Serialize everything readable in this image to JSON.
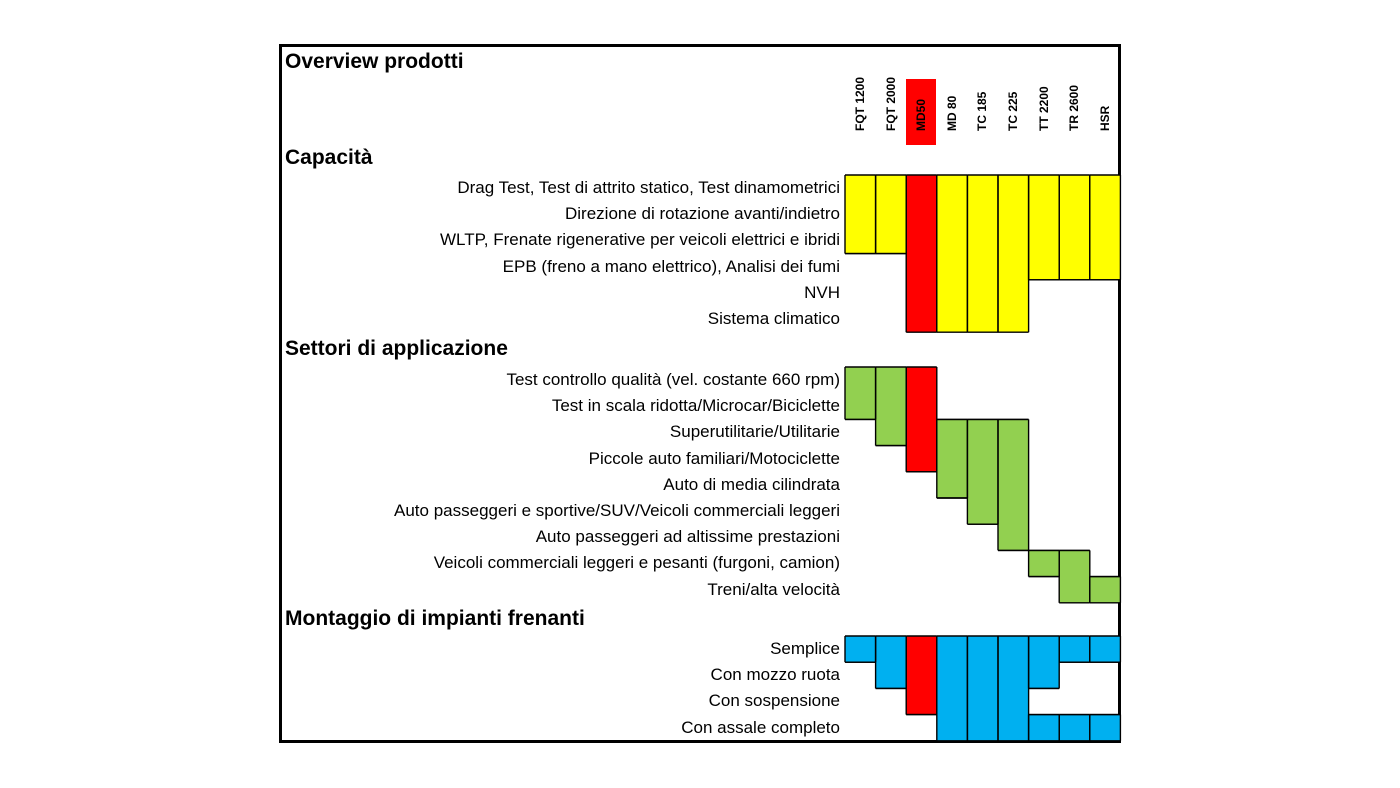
{
  "chart_data": {
    "type": "table",
    "title": "Overview prodotti",
    "columns": [
      "FQT 1200",
      "FQT 2000",
      "MD50",
      "MD 80",
      "TC 185",
      "TC 225",
      "TT 2200",
      "TR 2600",
      "HSR"
    ],
    "highlight_column": "MD50",
    "colors": {
      "capacita": "#ffff00",
      "settori": "#92d050",
      "montaggio": "#00b0f0",
      "highlight": "#ff0000"
    },
    "sections": [
      {
        "key": "capacita",
        "title": "Capacità",
        "rows": [
          {
            "label": "Drag Test, Test di attrito statico, Test dinamometrici",
            "cells": [
              1,
              1,
              1,
              1,
              1,
              1,
              1,
              1,
              1
            ]
          },
          {
            "label": "Direzione di rotazione avanti/indietro",
            "cells": [
              1,
              1,
              1,
              1,
              1,
              1,
              1,
              1,
              1
            ]
          },
          {
            "label": "WLTP, Frenate rigenerative per veicoli elettrici e ibridi",
            "cells": [
              1,
              1,
              1,
              1,
              1,
              1,
              1,
              1,
              1
            ]
          },
          {
            "label": "EPB (freno a mano elettrico), Analisi dei fumi",
            "cells": [
              0,
              0,
              1,
              1,
              1,
              1,
              1,
              1,
              1
            ]
          },
          {
            "label": "NVH",
            "cells": [
              0,
              0,
              1,
              1,
              1,
              1,
              0,
              0,
              0
            ]
          },
          {
            "label": "Sistema climatico",
            "cells": [
              0,
              0,
              1,
              1,
              1,
              1,
              0,
              0,
              0
            ]
          }
        ]
      },
      {
        "key": "settori",
        "title": "Settori di applicazione",
        "rows": [
          {
            "label": "Test controllo qualità (vel. costante 660 rpm)",
            "cells": [
              1,
              1,
              1,
              0,
              0,
              0,
              0,
              0,
              0
            ]
          },
          {
            "label": "Test in scala ridotta/Microcar/Biciclette",
            "cells": [
              1,
              1,
              1,
              0,
              0,
              0,
              0,
              0,
              0
            ]
          },
          {
            "label": "Superutilitarie/Utilitarie",
            "cells": [
              0,
              1,
              1,
              1,
              1,
              1,
              0,
              0,
              0
            ]
          },
          {
            "label": "Piccole auto familiari/Motociclette",
            "cells": [
              0,
              0,
              1,
              1,
              1,
              1,
              0,
              0,
              0
            ]
          },
          {
            "label": "Auto di media cilindrata",
            "cells": [
              0,
              0,
              0,
              1,
              1,
              1,
              0,
              0,
              0
            ]
          },
          {
            "label": "Auto passeggeri e sportive/SUV/Veicoli commerciali leggeri",
            "cells": [
              0,
              0,
              0,
              0,
              1,
              1,
              0,
              0,
              0
            ]
          },
          {
            "label": "Auto passeggeri ad altissime prestazioni",
            "cells": [
              0,
              0,
              0,
              0,
              0,
              1,
              0,
              0,
              0
            ]
          },
          {
            "label": "Veicoli commerciali leggeri e pesanti (furgoni, camion)",
            "cells": [
              0,
              0,
              0,
              0,
              0,
              0,
              1,
              1,
              0
            ]
          },
          {
            "label": "Treni/alta velocità",
            "cells": [
              0,
              0,
              0,
              0,
              0,
              0,
              0,
              1,
              1
            ]
          }
        ]
      },
      {
        "key": "montaggio",
        "title": "Montaggio di impianti frenanti",
        "rows": [
          {
            "label": "Semplice",
            "cells": [
              1,
              1,
              1,
              1,
              1,
              1,
              1,
              1,
              1
            ]
          },
          {
            "label": "Con mozzo ruota",
            "cells": [
              0,
              1,
              1,
              1,
              1,
              1,
              1,
              0,
              0
            ]
          },
          {
            "label": "Con sospensione",
            "cells": [
              0,
              0,
              1,
              1,
              1,
              1,
              0,
              0,
              0
            ]
          },
          {
            "label": "Con assale completo",
            "cells": [
              0,
              0,
              0,
              1,
              1,
              1,
              1,
              1,
              1
            ]
          }
        ]
      }
    ]
  }
}
